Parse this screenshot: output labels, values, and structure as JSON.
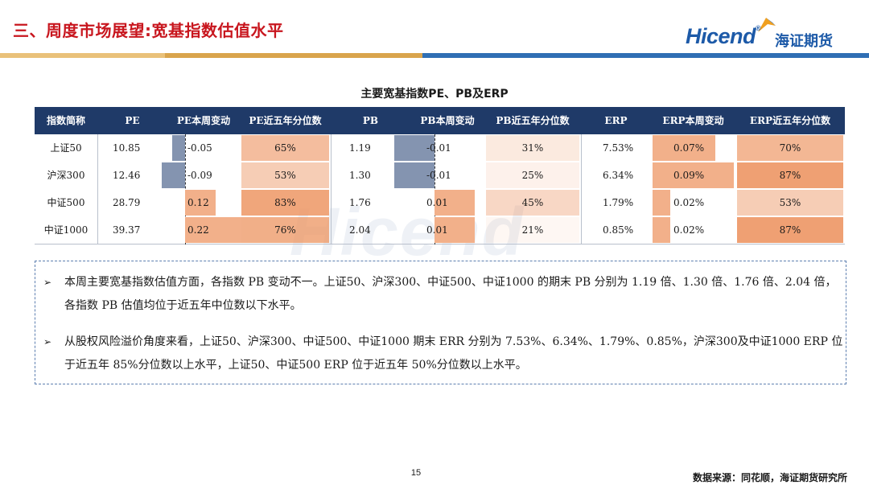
{
  "header": {
    "title": "三、周度市场展望:宽基指数估值水平",
    "logo_text": "Hicend",
    "logo_reg": "®",
    "logo_cn": "海证期货"
  },
  "colors": {
    "title_red": "#c8161e",
    "brand_blue": "#1d5aa8",
    "header_navy": "#1f3a68",
    "negative_bar": "#8494b0",
    "positive_bar": "#f2b08a"
  },
  "watermark": "Hicend",
  "table": {
    "title": "主要宽基指数PE、PB及ERP",
    "columns": [
      "指数简称",
      "PE",
      "PE本周变动",
      "PE近五年分位数",
      "PB",
      "PB本周变动",
      "PB近五年分位数",
      "ERP",
      "ERP本周变动",
      "ERP近五年分位数"
    ],
    "rows": [
      {
        "name": "上证50",
        "pe": "10.85",
        "pe_chg": "-0.05",
        "pe_pct": "65%",
        "pb": "1.19",
        "pb_chg": "-0.01",
        "pb_pct": "31%",
        "erp": "7.53%",
        "erp_chg": "0.07%",
        "erp_pct": "70%"
      },
      {
        "name": "沪深300",
        "pe": "12.46",
        "pe_chg": "-0.09",
        "pe_pct": "53%",
        "pb": "1.30",
        "pb_chg": "-0.01",
        "pb_pct": "25%",
        "erp": "6.34%",
        "erp_chg": "0.09%",
        "erp_pct": "87%"
      },
      {
        "name": "中证500",
        "pe": "28.79",
        "pe_chg": "0.12",
        "pe_pct": "83%",
        "pb": "1.76",
        "pb_chg": "0.01",
        "pb_pct": "45%",
        "erp": "1.79%",
        "erp_chg": "0.02%",
        "erp_pct": "53%"
      },
      {
        "name": "中证1000",
        "pe": "39.37",
        "pe_chg": "0.22",
        "pe_pct": "76%",
        "pb": "2.04",
        "pb_chg": "0.01",
        "pb_pct": "21%",
        "erp": "0.85%",
        "erp_chg": "0.02%",
        "erp_pct": "87%"
      }
    ],
    "bar_values": {
      "pe_chg": [
        -0.05,
        -0.09,
        0.12,
        0.22
      ],
      "pb_chg": [
        -0.01,
        -0.01,
        0.01,
        0.01
      ],
      "erp_chg": [
        0.07,
        0.09,
        0.02,
        0.02
      ],
      "pe_pct": [
        65,
        53,
        83,
        76
      ],
      "pb_pct": [
        31,
        25,
        45,
        21
      ],
      "erp_pct": [
        70,
        87,
        53,
        87
      ]
    }
  },
  "notes": [
    {
      "marker": "➢",
      "text": "本周主要宽基指数估值方面，各指数 PB 变动不一。上证50、沪深300、中证500、中证1000 的期末 PB 分别为 1.19 倍、1.30 倍、1.76 倍、2.04 倍，各指数 PB 估值均位于近五年中位数以下水平。"
    },
    {
      "marker": "➢",
      "text": "从股权风险溢价角度来看，上证50、沪深300、中证500、中证1000 期末 ERR 分别为 7.53%、6.34%、1.79%、0.85%，沪深300及中证1000 ERP 位于近五年 85%分位数以上水平，上证50、中证500 ERP 位于近五年 50%分位数以上水平。"
    }
  ],
  "footer": {
    "page_number": "15",
    "source": "数据来源：同花顺，海证期货研究所"
  }
}
